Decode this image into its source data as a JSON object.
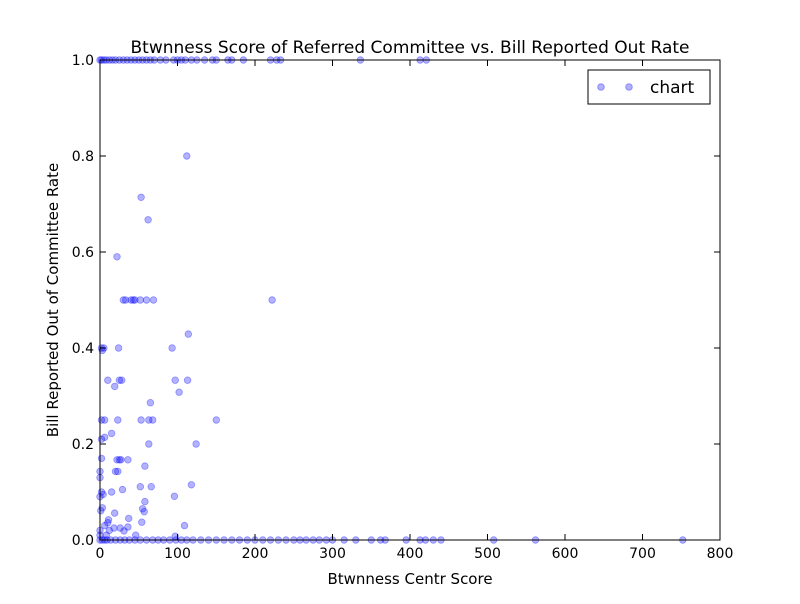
{
  "chart_data": {
    "type": "scatter",
    "title": "Btwnness Score of Referred Committee vs. Bill Reported Out Rate",
    "xlabel": "Btwnness Centr Score",
    "ylabel": "Bill Reported Out of Committee Rate",
    "xlim": [
      0,
      800
    ],
    "ylim": [
      0.0,
      1.0
    ],
    "xticks": [
      "0",
      "100",
      "200",
      "300",
      "400",
      "500",
      "600",
      "700",
      "800"
    ],
    "yticks": [
      "0.0",
      "0.2",
      "0.4",
      "0.6",
      "0.8",
      "1.0"
    ],
    "legend": {
      "label": "chart",
      "placement": "top-right"
    },
    "marker_color": "#0000ff",
    "marker_alpha": 0.3,
    "grid": false,
    "series": [
      {
        "name": "chart",
        "points": [
          [
            0,
            1.0
          ],
          [
            2,
            1.0
          ],
          [
            5,
            1.0
          ],
          [
            8,
            1.0
          ],
          [
            12,
            1.0
          ],
          [
            16,
            1.0
          ],
          [
            20,
            1.0
          ],
          [
            25,
            1.0
          ],
          [
            30,
            1.0
          ],
          [
            35,
            1.0
          ],
          [
            40,
            1.0
          ],
          [
            45,
            1.0
          ],
          [
            50,
            1.0
          ],
          [
            55,
            1.0
          ],
          [
            60,
            1.0
          ],
          [
            65,
            1.0
          ],
          [
            70,
            1.0
          ],
          [
            78,
            1.0
          ],
          [
            85,
            1.0
          ],
          [
            95,
            1.0
          ],
          [
            100,
            1.0
          ],
          [
            105,
            1.0
          ],
          [
            110,
            1.0
          ],
          [
            118,
            1.0
          ],
          [
            125,
            1.0
          ],
          [
            135,
            1.0
          ],
          [
            145,
            1.0
          ],
          [
            150,
            1.0
          ],
          [
            165,
            1.0
          ],
          [
            170,
            1.0
          ],
          [
            185,
            1.0
          ],
          [
            220,
            1.0
          ],
          [
            228,
            1.0
          ],
          [
            233,
            1.0
          ],
          [
            336,
            1.0
          ],
          [
            413,
            1.0
          ],
          [
            421,
            1.0
          ],
          [
            112,
            0.8
          ],
          [
            53,
            0.714
          ],
          [
            62,
            0.667
          ],
          [
            22,
            0.59
          ],
          [
            30,
            0.5
          ],
          [
            33,
            0.5
          ],
          [
            40,
            0.5
          ],
          [
            43,
            0.5
          ],
          [
            45,
            0.5
          ],
          [
            52,
            0.5
          ],
          [
            60,
            0.5
          ],
          [
            69,
            0.5
          ],
          [
            222,
            0.5
          ],
          [
            114,
            0.429
          ],
          [
            2,
            0.4
          ],
          [
            3,
            0.395
          ],
          [
            5,
            0.4
          ],
          [
            24,
            0.4
          ],
          [
            93,
            0.4
          ],
          [
            10,
            0.333
          ],
          [
            25,
            0.333
          ],
          [
            28,
            0.333
          ],
          [
            97,
            0.333
          ],
          [
            113,
            0.333
          ],
          [
            19,
            0.32
          ],
          [
            102,
            0.308
          ],
          [
            65,
            0.286
          ],
          [
            2,
            0.25
          ],
          [
            6,
            0.25
          ],
          [
            23,
            0.25
          ],
          [
            53,
            0.25
          ],
          [
            63,
            0.25
          ],
          [
            68,
            0.25
          ],
          [
            150,
            0.25
          ],
          [
            15,
            0.222
          ],
          [
            6,
            0.214
          ],
          [
            2,
            0.21
          ],
          [
            63,
            0.2
          ],
          [
            124,
            0.2
          ],
          [
            22,
            0.167
          ],
          [
            25,
            0.167
          ],
          [
            27,
            0.167
          ],
          [
            36,
            0.167
          ],
          [
            20,
            0.143
          ],
          [
            23,
            0.143
          ],
          [
            0,
            0.143
          ],
          [
            58,
            0.154
          ],
          [
            2,
            0.17
          ],
          [
            0,
            0.13
          ],
          [
            118,
            0.115
          ],
          [
            66,
            0.111
          ],
          [
            2,
            0.1
          ],
          [
            15,
            0.1
          ],
          [
            29,
            0.105
          ],
          [
            4,
            0.095
          ],
          [
            52,
            0.111
          ],
          [
            96,
            0.091
          ],
          [
            0,
            0.09
          ],
          [
            58,
            0.08
          ],
          [
            3,
            0.067
          ],
          [
            55,
            0.065
          ],
          [
            57,
            0.059
          ],
          [
            1,
            0.061
          ],
          [
            19,
            0.056
          ],
          [
            37,
            0.045
          ],
          [
            11,
            0.042
          ],
          [
            10,
            0.036
          ],
          [
            109,
            0.03
          ],
          [
            54,
            0.037
          ],
          [
            36,
            0.027
          ],
          [
            0,
            0.02
          ],
          [
            0,
            0.01
          ],
          [
            6,
            0.03
          ],
          [
            8,
            0.01
          ],
          [
            12,
            0.02
          ],
          [
            18,
            0.025
          ],
          [
            26,
            0.025
          ],
          [
            31,
            0.019
          ],
          [
            46,
            0.01
          ],
          [
            97,
            0.008
          ],
          [
            0,
            0.0
          ],
          [
            3,
            0.0
          ],
          [
            6,
            0.0
          ],
          [
            9,
            0.0
          ],
          [
            14,
            0.0
          ],
          [
            20,
            0.0
          ],
          [
            26,
            0.0
          ],
          [
            32,
            0.0
          ],
          [
            38,
            0.0
          ],
          [
            45,
            0.0
          ],
          [
            52,
            0.0
          ],
          [
            60,
            0.0
          ],
          [
            68,
            0.0
          ],
          [
            75,
            0.0
          ],
          [
            82,
            0.0
          ],
          [
            90,
            0.0
          ],
          [
            98,
            0.0
          ],
          [
            105,
            0.0
          ],
          [
            112,
            0.0
          ],
          [
            120,
            0.0
          ],
          [
            130,
            0.0
          ],
          [
            140,
            0.0
          ],
          [
            150,
            0.0
          ],
          [
            160,
            0.0
          ],
          [
            170,
            0.0
          ],
          [
            180,
            0.0
          ],
          [
            190,
            0.0
          ],
          [
            200,
            0.0
          ],
          [
            210,
            0.0
          ],
          [
            220,
            0.0
          ],
          [
            230,
            0.0
          ],
          [
            240,
            0.0
          ],
          [
            250,
            0.0
          ],
          [
            258,
            0.0
          ],
          [
            266,
            0.0
          ],
          [
            275,
            0.0
          ],
          [
            283,
            0.0
          ],
          [
            292,
            0.0
          ],
          [
            300,
            0.0
          ],
          [
            315,
            0.0
          ],
          [
            330,
            0.0
          ],
          [
            350,
            0.0
          ],
          [
            362,
            0.0
          ],
          [
            368,
            0.0
          ],
          [
            395,
            0.0
          ],
          [
            413,
            0.0
          ],
          [
            420,
            0.0
          ],
          [
            430,
            0.0
          ],
          [
            440,
            0.0
          ],
          [
            508,
            0.0
          ],
          [
            562,
            0.0
          ],
          [
            752,
            0.0
          ]
        ]
      }
    ]
  }
}
